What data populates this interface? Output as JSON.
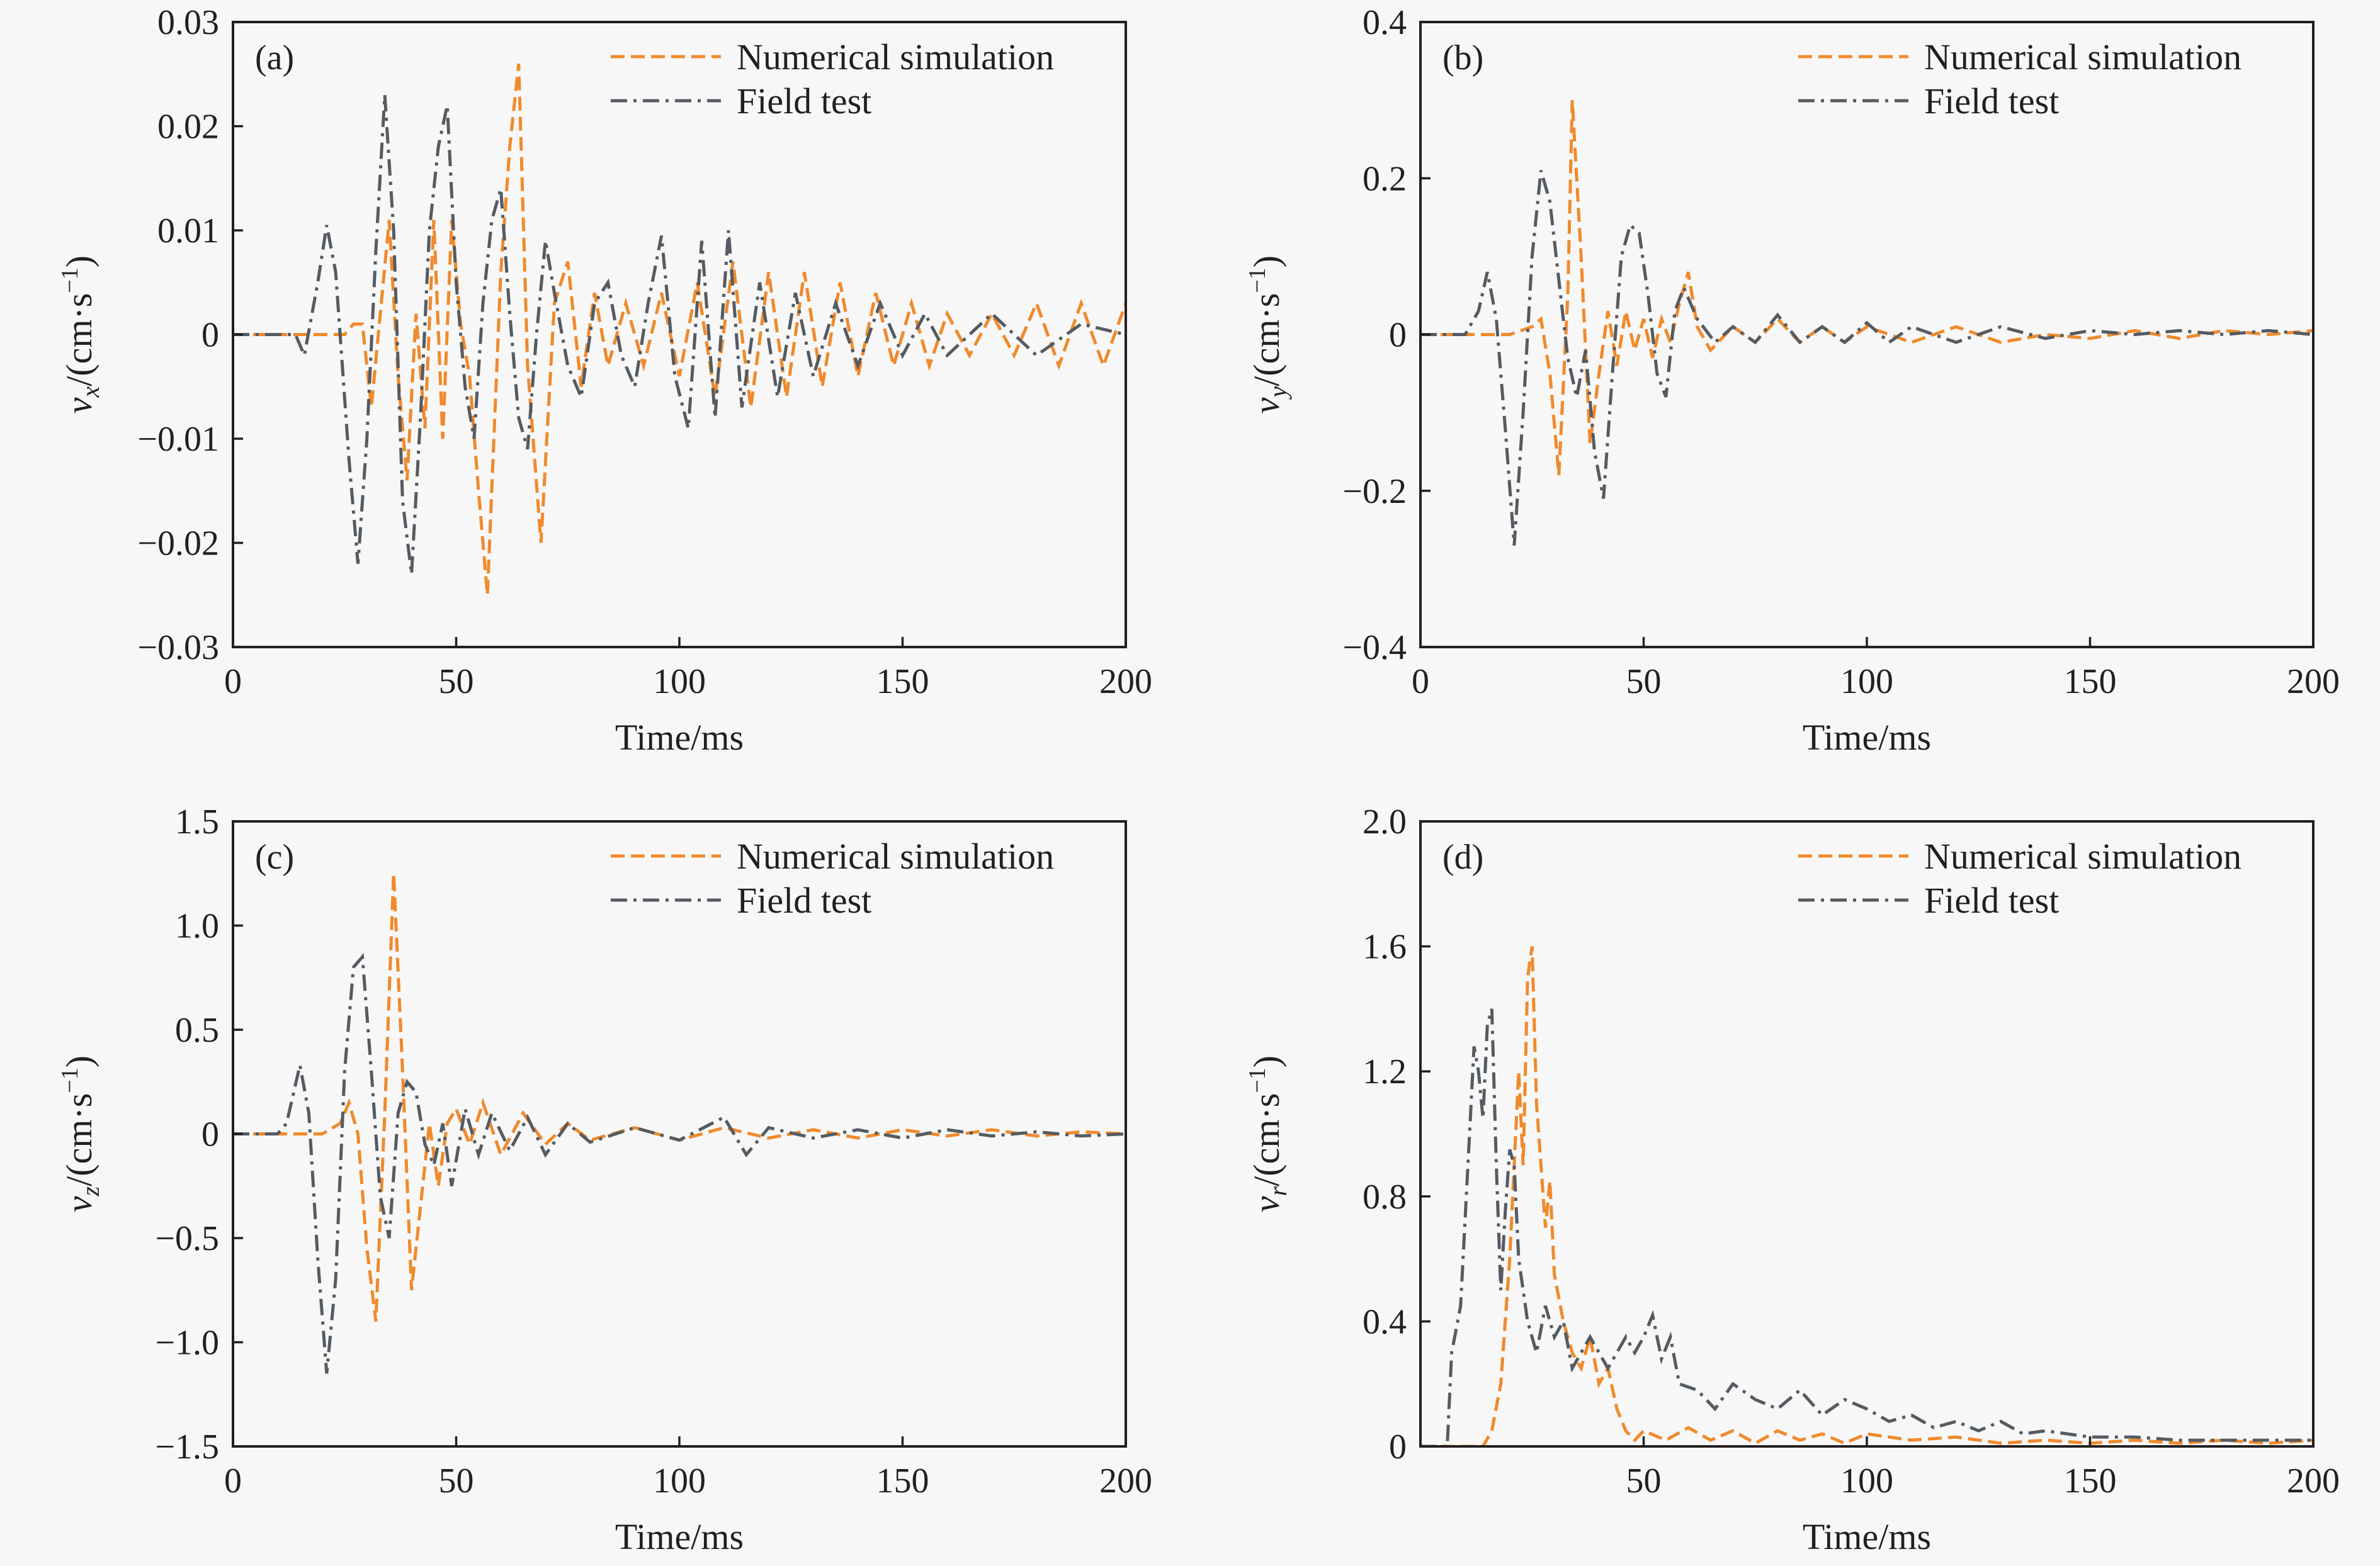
{
  "colors": {
    "numerical_simulation": "#f08a2c",
    "field_test": "#555b62",
    "accent_blue": "#2e7fb0",
    "accent_pink": "#d9607a",
    "axes": "#231f20",
    "background": "#f7f7f7"
  },
  "legend": {
    "sim_label": "Numerical simulation",
    "field_label": "Field test"
  },
  "chart_data": [
    {
      "type": "line",
      "panel": "(a)",
      "xlabel": "Time/ms",
      "ylabel_main": "v",
      "ylabel_sub": "x",
      "ylabel_rest": "/(cm·s",
      "ylabel_exp": "−1",
      "ylabel_close": ")",
      "xlim": [
        0,
        200
      ],
      "ylim": [
        -0.03,
        0.03
      ],
      "xticks": [
        0,
        50,
        100,
        150,
        200
      ],
      "xtick_labels": [
        "0",
        "50",
        "100",
        "150",
        "200"
      ],
      "yticks": [
        -0.03,
        -0.02,
        -0.01,
        0,
        0.01,
        0.02,
        0.03
      ],
      "ytick_labels": [
        "−0.03",
        "−0.02",
        "−0.01",
        "0",
        "0.01",
        "0.02",
        "0.03"
      ],
      "legend_position": "top-right",
      "series": [
        {
          "name": "Numerical simulation",
          "x": [
            0,
            15,
            25,
            27,
            29,
            31,
            33,
            35,
            37,
            39,
            41,
            43,
            45,
            47,
            49,
            51,
            53,
            55,
            57,
            60,
            62,
            64,
            66,
            69,
            72,
            75,
            78,
            81,
            84,
            88,
            92,
            96,
            100,
            104,
            108,
            112,
            116,
            120,
            124,
            128,
            132,
            136,
            140,
            144,
            148,
            152,
            156,
            160,
            165,
            170,
            175,
            180,
            185,
            190,
            195,
            200
          ],
          "y": [
            0,
            0,
            0,
            0.001,
            0.001,
            -0.007,
            0.002,
            0.011,
            -0.004,
            -0.014,
            0.002,
            -0.009,
            0.011,
            -0.01,
            0.011,
            0.001,
            -0.004,
            -0.015,
            -0.025,
            0.006,
            0.018,
            0.026,
            -0.003,
            -0.02,
            0.003,
            0.007,
            -0.005,
            0.004,
            -0.003,
            0.003,
            -0.003,
            0.004,
            -0.004,
            0.005,
            -0.006,
            0.007,
            -0.007,
            0.006,
            -0.006,
            0.006,
            -0.005,
            0.005,
            -0.004,
            0.004,
            -0.003,
            0.003,
            -0.003,
            0.002,
            -0.002,
            0.002,
            -0.002,
            0.003,
            -0.003,
            0.003,
            -0.003,
            0.003
          ]
        },
        {
          "name": "Field test",
          "x": [
            0,
            14,
            16,
            19,
            21,
            23,
            26,
            28,
            30,
            32,
            34,
            36,
            38,
            40,
            42,
            44,
            46,
            48,
            50,
            52,
            54,
            56,
            58,
            60,
            62,
            64,
            66,
            68,
            70,
            72,
            75,
            78,
            81,
            84,
            87,
            90,
            93,
            96,
            99,
            102,
            105,
            108,
            111,
            114,
            118,
            122,
            126,
            130,
            135,
            140,
            145,
            150,
            155,
            160,
            170,
            180,
            190,
            200
          ],
          "y": [
            0,
            0,
            -0.002,
            0.005,
            0.0105,
            0.006,
            -0.012,
            -0.022,
            -0.01,
            0.008,
            0.023,
            0.01,
            -0.016,
            -0.023,
            -0.008,
            0.01,
            0.018,
            0.022,
            0.005,
            -0.005,
            -0.01,
            0.003,
            0.011,
            0.014,
            0.002,
            -0.008,
            -0.011,
            0.0,
            0.009,
            0.004,
            -0.003,
            -0.006,
            0.003,
            0.005,
            -0.002,
            -0.005,
            0.003,
            0.0095,
            -0.004,
            -0.009,
            0.009,
            -0.008,
            0.01,
            -0.007,
            0.005,
            -0.006,
            0.004,
            -0.004,
            0.003,
            -0.003,
            0.003,
            -0.002,
            0.002,
            -0.002,
            0.002,
            -0.002,
            0.001,
            0.0
          ]
        }
      ]
    },
    {
      "type": "line",
      "panel": "(b)",
      "xlabel": "Time/ms",
      "ylabel_main": "v",
      "ylabel_sub": "y",
      "ylabel_rest": "/(cm·s",
      "ylabel_exp": "−1",
      "ylabel_close": ")",
      "xlim": [
        0,
        200
      ],
      "ylim": [
        -0.4,
        0.4
      ],
      "xticks": [
        0,
        50,
        100,
        150,
        200
      ],
      "xtick_labels": [
        "0",
        "50",
        "100",
        "150",
        "200"
      ],
      "yticks": [
        -0.4,
        -0.2,
        0,
        0.2,
        0.4
      ],
      "ytick_labels": [
        "−0.4",
        "−0.2",
        "0",
        "0.2",
        "0.4"
      ],
      "legend_position": "top-right",
      "series": [
        {
          "name": "Numerical simulation",
          "x": [
            0,
            20,
            25,
            27,
            29,
            31,
            33,
            34,
            36,
            38,
            40,
            42,
            44,
            46,
            48,
            50,
            52,
            54,
            56,
            58,
            60,
            62,
            65,
            70,
            75,
            80,
            85,
            90,
            95,
            100,
            110,
            120,
            130,
            140,
            150,
            160,
            170,
            180,
            190,
            200
          ],
          "y": [
            0,
            0,
            0.01,
            0.02,
            -0.05,
            -0.18,
            0.05,
            0.3,
            0.1,
            -0.14,
            -0.05,
            0.03,
            -0.04,
            0.03,
            -0.02,
            0.02,
            -0.03,
            0.02,
            -0.01,
            0.04,
            0.08,
            0.01,
            -0.02,
            0.01,
            -0.01,
            0.02,
            -0.01,
            0.01,
            -0.01,
            0.01,
            -0.01,
            0.01,
            -0.01,
            0.0,
            -0.005,
            0.005,
            -0.005,
            0.005,
            0.0,
            0.005
          ]
        },
        {
          "name": "Field test",
          "x": [
            0,
            10,
            13,
            15,
            17,
            19,
            21,
            23,
            25,
            27,
            29,
            31,
            33,
            35,
            37,
            39,
            41,
            43,
            45,
            47,
            49,
            51,
            53,
            55,
            57,
            59,
            62,
            66,
            70,
            75,
            80,
            85,
            90,
            95,
            100,
            105,
            110,
            120,
            130,
            140,
            150,
            160,
            170,
            180,
            190,
            200
          ],
          "y": [
            0,
            0,
            0.03,
            0.08,
            0.02,
            -0.12,
            -0.27,
            -0.1,
            0.1,
            0.21,
            0.17,
            0.07,
            -0.03,
            -0.08,
            -0.02,
            -0.15,
            -0.21,
            -0.05,
            0.1,
            0.14,
            0.13,
            0.05,
            -0.05,
            -0.08,
            0.03,
            0.06,
            0.02,
            -0.01,
            0.01,
            -0.01,
            0.025,
            -0.01,
            0.01,
            -0.01,
            0.015,
            -0.01,
            0.01,
            -0.01,
            0.01,
            -0.005,
            0.005,
            0.0,
            0.005,
            0.0,
            0.005,
            0.0
          ]
        }
      ]
    },
    {
      "type": "line",
      "panel": "(c)",
      "xlabel": "Time/ms",
      "ylabel_main": "v",
      "ylabel_sub": "z",
      "ylabel_rest": "/(cm·s",
      "ylabel_exp": "−1",
      "ylabel_close": ")",
      "xlim": [
        0,
        200
      ],
      "ylim": [
        -1.5,
        1.5
      ],
      "xticks": [
        0,
        50,
        100,
        150,
        200
      ],
      "xtick_labels": [
        "0",
        "50",
        "100",
        "150",
        "200"
      ],
      "yticks": [
        -1.5,
        -1.0,
        -0.5,
        0,
        0.5,
        1.0,
        1.5
      ],
      "ytick_labels": [
        "−1.5",
        "−1.0",
        "−0.5",
        "0",
        "0.5",
        "1.0",
        "1.5"
      ],
      "legend_position": "top-right",
      "series": [
        {
          "name": "Numerical simulation",
          "x": [
            0,
            20,
            24,
            26,
            28,
            30,
            32,
            34,
            36,
            38,
            40,
            42,
            44,
            46,
            48,
            50,
            53,
            56,
            60,
            65,
            70,
            75,
            80,
            90,
            100,
            110,
            120,
            130,
            140,
            150,
            160,
            170,
            180,
            190,
            200
          ],
          "y": [
            0,
            0,
            0.05,
            0.15,
            0.0,
            -0.55,
            -0.9,
            0.1,
            1.25,
            0.3,
            -0.75,
            -0.35,
            0.05,
            -0.25,
            0.05,
            0.12,
            -0.05,
            0.15,
            -0.1,
            0.1,
            -0.05,
            0.05,
            -0.03,
            0.03,
            -0.03,
            0.03,
            -0.02,
            0.02,
            -0.02,
            0.02,
            -0.01,
            0.02,
            -0.01,
            0.01,
            0.0
          ]
        },
        {
          "name": "Field test",
          "x": [
            0,
            10,
            12,
            15,
            17,
            19,
            21,
            23,
            25,
            27,
            29,
            31,
            33,
            35,
            37,
            39,
            41,
            43,
            45,
            47,
            49,
            52,
            55,
            58,
            62,
            66,
            70,
            75,
            80,
            90,
            100,
            110,
            115,
            120,
            130,
            140,
            150,
            160,
            170,
            180,
            190,
            200
          ],
          "y": [
            0,
            0,
            0.05,
            0.33,
            0.1,
            -0.6,
            -1.15,
            -0.7,
            0.3,
            0.8,
            0.85,
            0.3,
            -0.3,
            -0.5,
            0.1,
            0.25,
            0.2,
            -0.05,
            -0.15,
            0.05,
            -0.25,
            0.12,
            -0.1,
            0.1,
            -0.08,
            0.08,
            -0.1,
            0.05,
            -0.04,
            0.03,
            -0.03,
            0.08,
            -0.1,
            0.03,
            -0.02,
            0.02,
            -0.02,
            0.02,
            -0.01,
            0.01,
            -0.01,
            0.0
          ]
        }
      ]
    },
    {
      "type": "line",
      "panel": "(d)",
      "xlabel": "Time/ms",
      "ylabel_main": "v",
      "ylabel_sub": "r",
      "ylabel_rest": "/(cm·s",
      "ylabel_exp": "−1",
      "ylabel_close": ")",
      "xlim": [
        0,
        200
      ],
      "ylim": [
        0,
        2.0
      ],
      "xticks": [
        50,
        100,
        150,
        200
      ],
      "xtick_labels": [
        "50",
        "100",
        "150",
        "200"
      ],
      "yticks": [
        0,
        0.4,
        0.8,
        1.2,
        1.6,
        2.0
      ],
      "ytick_labels": [
        "0",
        "0.4",
        "0.8",
        "1.2",
        "1.6",
        "2.0"
      ],
      "legend_position": "top-right",
      "series": [
        {
          "name": "Numerical simulation",
          "x": [
            0,
            14,
            16,
            18,
            20,
            22,
            23,
            24,
            25,
            26,
            27,
            28,
            29,
            30,
            32,
            34,
            36,
            38,
            40,
            42,
            44,
            46,
            48,
            50,
            55,
            60,
            65,
            70,
            75,
            80,
            85,
            90,
            95,
            100,
            110,
            120,
            130,
            140,
            150,
            160,
            170,
            180,
            190,
            200
          ],
          "y": [
            0,
            0,
            0.05,
            0.2,
            0.6,
            1.2,
            0.9,
            1.5,
            1.6,
            1.1,
            0.9,
            0.7,
            0.85,
            0.55,
            0.4,
            0.3,
            0.25,
            0.35,
            0.2,
            0.25,
            0.12,
            0.05,
            0.02,
            0.05,
            0.02,
            0.06,
            0.02,
            0.05,
            0.01,
            0.05,
            0.02,
            0.04,
            0.01,
            0.04,
            0.02,
            0.03,
            0.01,
            0.02,
            0.01,
            0.02,
            0.01,
            0.02,
            0.01,
            0.02
          ]
        },
        {
          "name": "Field test",
          "x": [
            0,
            6,
            7,
            9,
            11,
            12,
            13,
            14,
            15,
            16,
            17,
            18,
            19,
            20,
            21,
            22,
            23,
            24,
            26,
            28,
            30,
            32,
            34,
            36,
            38,
            40,
            42,
            44,
            46,
            48,
            50,
            52,
            54,
            56,
            58,
            62,
            66,
            70,
            75,
            80,
            85,
            90,
            95,
            100,
            105,
            110,
            115,
            120,
            125,
            130,
            135,
            140,
            150,
            160,
            170,
            180,
            190,
            200
          ],
          "y": [
            0,
            0,
            0.3,
            0.45,
            1.0,
            1.28,
            1.2,
            1.05,
            1.35,
            1.4,
            0.9,
            0.5,
            0.75,
            0.95,
            0.9,
            0.6,
            0.5,
            0.4,
            0.3,
            0.45,
            0.35,
            0.4,
            0.25,
            0.3,
            0.35,
            0.3,
            0.25,
            0.3,
            0.35,
            0.3,
            0.35,
            0.42,
            0.28,
            0.35,
            0.2,
            0.18,
            0.12,
            0.2,
            0.15,
            0.12,
            0.18,
            0.1,
            0.15,
            0.12,
            0.08,
            0.1,
            0.06,
            0.08,
            0.05,
            0.08,
            0.04,
            0.05,
            0.03,
            0.03,
            0.02,
            0.02,
            0.02,
            0.02
          ]
        }
      ]
    }
  ]
}
